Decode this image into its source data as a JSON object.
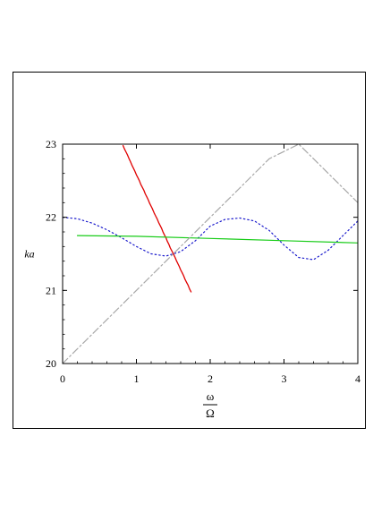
{
  "chart_data": {
    "type": "line",
    "title": "",
    "xlabel_num": "ω",
    "xlabel_den": "Ω",
    "ylabel": "ka",
    "xlim": [
      0,
      4
    ],
    "ylim": [
      20,
      23
    ],
    "x_ticks": [
      0,
      1,
      2,
      3,
      4
    ],
    "y_ticks": [
      20,
      21,
      22,
      23
    ],
    "colors": {
      "red": "#e00000",
      "blue": "#1a1acc",
      "green": "#18cc18",
      "gray": "#a8a8a8"
    },
    "series": [
      {
        "style": "red-solid",
        "color": "red",
        "x": [
          0.82,
          0.84,
          0.86,
          0.88,
          0.9,
          0.92,
          0.94,
          0.96,
          0.98,
          1.0,
          1.02,
          1.04,
          1.06,
          1.08,
          1.1,
          1.12,
          1.14,
          1.16,
          1.18,
          1.2,
          1.22,
          1.24,
          1.26,
          1.28,
          1.3,
          1.32,
          1.34,
          1.36,
          1.38,
          1.4,
          1.42,
          1.44,
          1.46,
          1.48,
          1.5,
          1.52,
          1.54,
          1.56,
          1.58,
          1.6,
          1.62,
          1.64,
          1.66,
          1.68,
          1.7,
          1.72,
          1.74
        ],
        "y": [
          22.98,
          22.93,
          22.89,
          22.85,
          22.8,
          22.76,
          22.71,
          22.67,
          22.63,
          22.58,
          22.54,
          22.5,
          22.45,
          22.41,
          22.37,
          22.32,
          22.28,
          22.24,
          22.19,
          22.15,
          22.11,
          22.06,
          22.02,
          21.98,
          21.93,
          21.89,
          21.85,
          21.8,
          21.76,
          21.72,
          21.67,
          21.63,
          21.58,
          21.54,
          21.5,
          21.46,
          21.41,
          21.37,
          21.33,
          21.28,
          21.24,
          21.2,
          21.15,
          21.11,
          21.07,
          21.02,
          20.98
        ]
      },
      {
        "style": "blue-dotted",
        "color": "blue",
        "x": [
          0.0,
          0.2,
          0.4,
          0.6,
          0.8,
          1.0,
          1.2,
          1.4,
          1.6,
          1.8,
          2.0,
          2.2,
          2.4,
          2.6,
          2.8,
          3.0,
          3.2,
          3.4,
          3.6,
          3.8,
          4.0
        ],
        "y": [
          22.0,
          21.98,
          21.92,
          21.83,
          21.72,
          21.6,
          21.5,
          21.47,
          21.53,
          21.68,
          21.88,
          21.97,
          21.99,
          21.95,
          21.82,
          21.62,
          21.45,
          21.42,
          21.55,
          21.75,
          21.95
        ]
      },
      {
        "style": "green-solid",
        "color": "green",
        "x": [
          0.2,
          1.0,
          2.0,
          3.0,
          4.0
        ],
        "y": [
          21.75,
          21.74,
          21.71,
          21.68,
          21.65
        ]
      },
      {
        "style": "gray-dashdot",
        "color": "gray",
        "x": [
          0.0,
          0.4,
          0.8,
          1.2,
          1.6,
          2.0,
          2.4,
          2.8,
          3.2,
          3.6,
          4.0
        ],
        "y": [
          20.0,
          20.4,
          20.8,
          21.2,
          21.6,
          22.0,
          22.4,
          22.8,
          23.0,
          22.6,
          22.2
        ]
      }
    ]
  }
}
